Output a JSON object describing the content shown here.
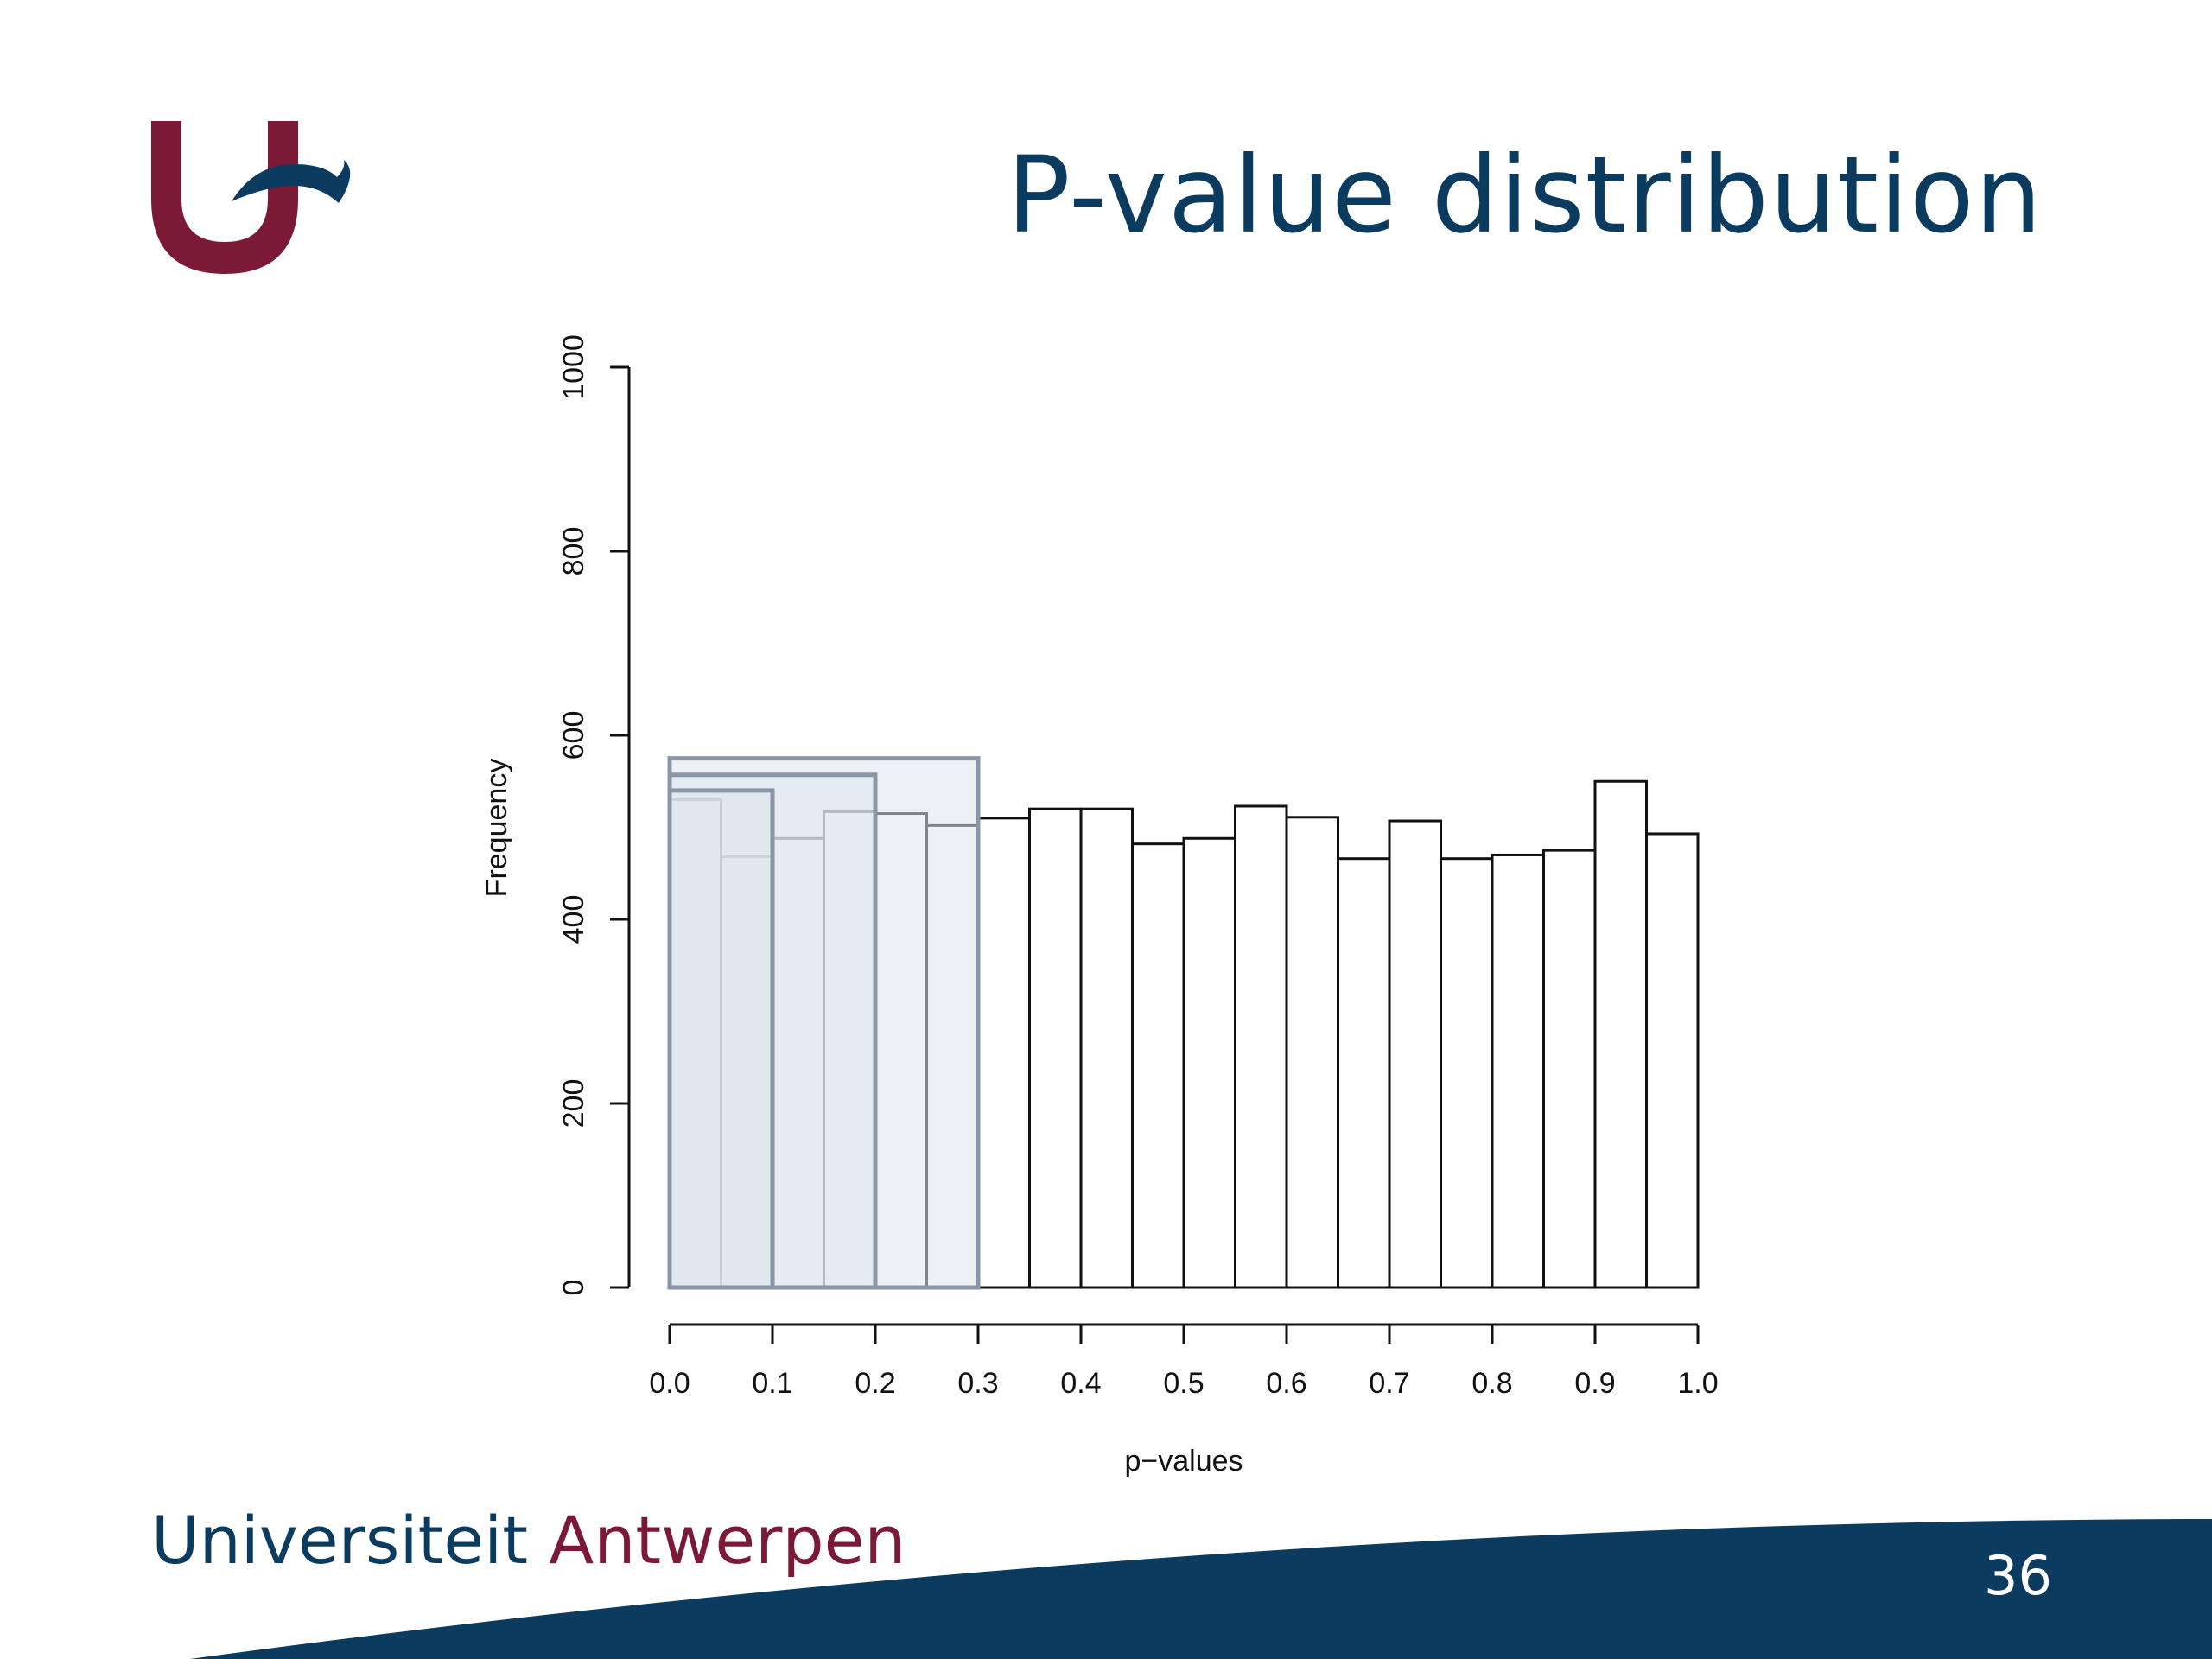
{
  "slide": {
    "title": "P-value distribution",
    "brand_part1": "Universiteit",
    "brand_part2": "Antwerpen",
    "page_number": "36"
  },
  "colors": {
    "title": "#0b3b5e",
    "brand_blue": "#0b3b5e",
    "brand_red": "#7a1a37",
    "footer_wave": "#0b3b5e",
    "highlight_fill": "#dfe6ee",
    "highlight_stroke": "#8a96a5"
  },
  "chart_data": {
    "type": "bar",
    "title": "",
    "xlabel": "p−values",
    "ylabel": "Frequency",
    "xlim": [
      0,
      1
    ],
    "ylim": [
      0,
      1000
    ],
    "x_ticks": [
      "0.0",
      "0.1",
      "0.2",
      "0.3",
      "0.4",
      "0.5",
      "0.6",
      "0.7",
      "0.8",
      "0.9",
      "1.0"
    ],
    "y_ticks": [
      "0",
      "200",
      "400",
      "600",
      "800",
      "1000"
    ],
    "bin_width": 0.05,
    "bins": [
      0,
      0.05,
      0.1,
      0.15,
      0.2,
      0.25,
      0.3,
      0.35,
      0.4,
      0.45,
      0.5,
      0.55,
      0.6,
      0.65,
      0.7,
      0.75,
      0.8,
      0.85,
      0.9,
      0.95
    ],
    "values": [
      530,
      468,
      488,
      517,
      515,
      502,
      510,
      520,
      520,
      482,
      488,
      523,
      511,
      466,
      507,
      466,
      470,
      475,
      550,
      493
    ],
    "highlight_regions": [
      {
        "x0": 0.0,
        "x1": 0.3,
        "value": 575
      },
      {
        "x0": 0.0,
        "x1": 0.2,
        "value": 557
      },
      {
        "x0": 0.0,
        "x1": 0.1,
        "value": 540
      }
    ]
  }
}
